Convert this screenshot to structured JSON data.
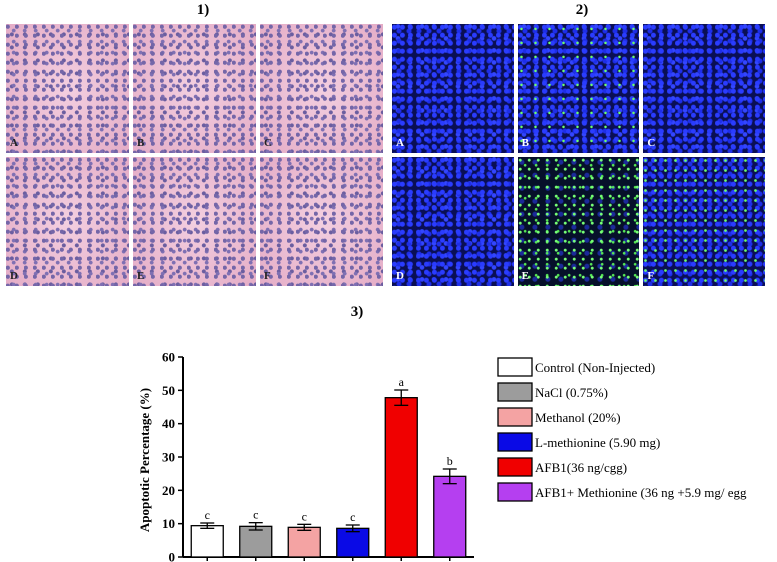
{
  "panel_labels": {
    "p1": "1)",
    "p2": "2)",
    "p3": "3)"
  },
  "he_panels": [
    {
      "letter": "A"
    },
    {
      "letter": "B"
    },
    {
      "letter": "C"
    },
    {
      "letter": "D"
    },
    {
      "letter": "E"
    },
    {
      "letter": "F"
    }
  ],
  "fluor_panels": [
    {
      "letter": "A",
      "style": "blue"
    },
    {
      "letter": "B",
      "style": "green"
    },
    {
      "letter": "C",
      "style": "blue"
    },
    {
      "letter": "D",
      "style": "blue"
    },
    {
      "letter": "E",
      "style": "green-strong"
    },
    {
      "letter": "F",
      "style": "green-mix"
    }
  ],
  "chart_data": {
    "type": "bar",
    "ylabel": "Apoptotic Percentage (%)",
    "xlabel": "",
    "ylim": [
      0,
      60
    ],
    "yticks": [
      0,
      10,
      20,
      30,
      40,
      50,
      60
    ],
    "categories": [
      "Control (Non-Injected)",
      "NaCl (0.75%)",
      "Methanol (20%)",
      "L-methionine (5.90 mg)",
      "AFB1(36 ng/cgg)",
      "AFB1+ Methionine (36 ng +5.9 mg/ egg"
    ],
    "values": [
      9.4,
      9.2,
      8.9,
      8.6,
      47.8,
      24.2
    ],
    "errors": [
      0.8,
      1.1,
      0.9,
      1.0,
      2.3,
      2.2
    ],
    "letters": [
      "c",
      "c",
      "c",
      "c",
      "a",
      "b"
    ],
    "colors": [
      "#ffffff",
      "#9c9c9c",
      "#f4a3a3",
      "#0a0ae6",
      "#f00000",
      "#b53ff0"
    ],
    "legend": [
      {
        "label": "Control (Non-Injected)",
        "color": "#ffffff"
      },
      {
        "label": "NaCl (0.75%)",
        "color": "#9c9c9c"
      },
      {
        "label": "Methanol (20%)",
        "color": "#f4a3a3"
      },
      {
        "label": "L-methionine (5.90 mg)",
        "color": "#0a0ae6"
      },
      {
        "label": "AFB1(36 ng/cgg)",
        "color": "#f00000"
      },
      {
        "label": "AFB1+ Methionine (36 ng +5.9 mg/ egg",
        "color": "#b53ff0"
      }
    ],
    "legend_position": "right",
    "grid": false
  }
}
